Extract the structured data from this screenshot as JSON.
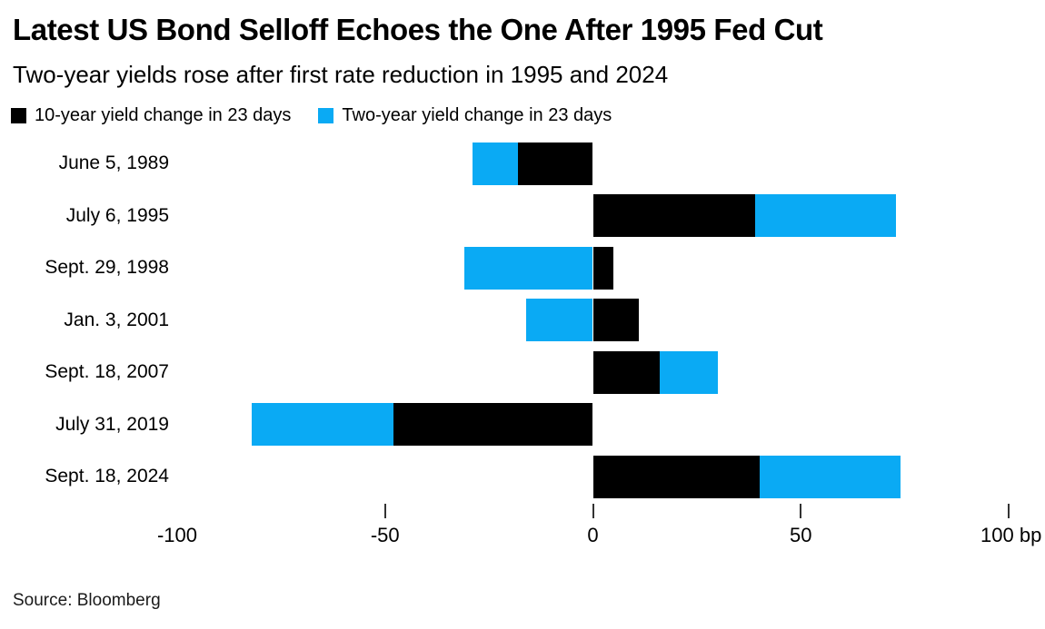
{
  "header": {
    "title": "Latest US Bond Selloff Echoes the One After 1995 Fed Cut",
    "subtitle": "Two-year yields rose after first rate reduction in 1995 and 2024"
  },
  "colors": {
    "ten_year": "#000000",
    "two_year": "#0aaaf4",
    "tick": "#333333"
  },
  "chart_data": {
    "type": "bar",
    "orientation": "horizontal",
    "stacked": true,
    "unit": "bp",
    "grid": false,
    "legend_position": "top",
    "categories": [
      "June 5, 1989",
      "July 6, 1995",
      "Sept. 29, 1998",
      "Jan. 3, 2001",
      "Sept. 18, 2007",
      "July 31, 2019",
      "Sept. 18, 2024"
    ],
    "series": [
      {
        "name": "10-year yield change in 23 days",
        "color": "#000000",
        "values": [
          -18,
          39,
          5,
          11,
          16,
          -48,
          40
        ]
      },
      {
        "name": "Two-year yield change in 23 days",
        "color": "#0aaaf4",
        "values": [
          -11,
          34,
          -31,
          -16,
          14,
          -34,
          34
        ]
      }
    ],
    "xlim": [
      -100,
      100
    ],
    "x_ticks": [
      {
        "value": -100,
        "label": "-100",
        "tick_mark": false
      },
      {
        "value": -50,
        "label": "-50",
        "tick_mark": true
      },
      {
        "value": 0,
        "label": "0",
        "tick_mark": true
      },
      {
        "value": 50,
        "label": "50",
        "tick_mark": true
      },
      {
        "value": 100,
        "label": "100 bp",
        "tick_mark": true
      }
    ]
  },
  "footer": {
    "source": "Source: Bloomberg"
  }
}
